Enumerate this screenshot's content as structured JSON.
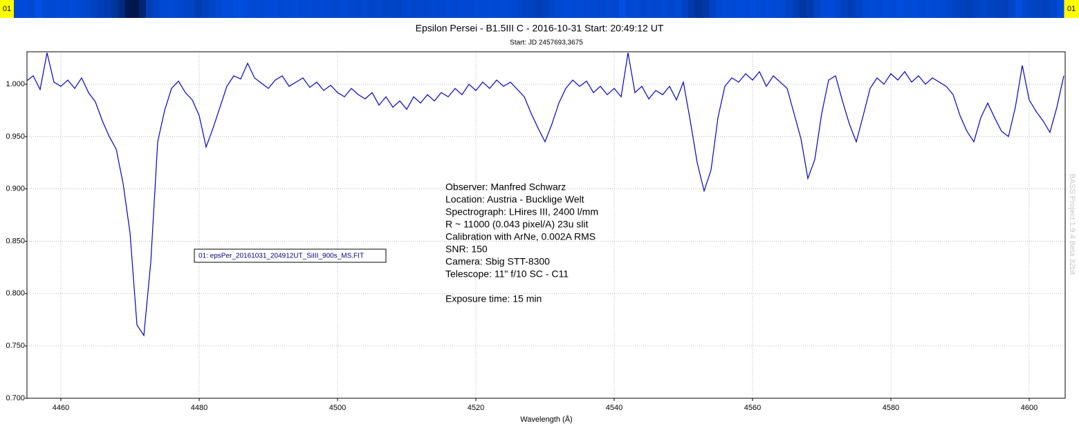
{
  "chart_data": {
    "type": "line",
    "title": "Epsilon Persei - B1.5III C - 2016-10-31 Start: 20:49:12 UT",
    "subtitle": "Start: JD 2457693,3675",
    "xlabel": "Wavelength (Å)",
    "strip_label": "01",
    "watermark": "BASS Project 1.9.4 Beta 32bit",
    "annotation": [
      "Observer: Manfred Schwarz",
      "Location: Austria - Bucklige Welt",
      "Spectrograph: LHires III, 2400 l/mm",
      "R ~ 11000 (0.043 pixel/A) 23u slit",
      "Calibration with ArNe, 0.002A RMS",
      "SNR: 150",
      "Camera: Sbig STT-8300",
      "Telescope: 11\" f/10 SC - C11",
      "Exposure time: 15 min"
    ],
    "xlim": [
      4455.1,
      4605.2
    ],
    "ylim": [
      0.7,
      1.031
    ],
    "xticks": [
      4460,
      4480,
      4500,
      4520,
      4540,
      4560,
      4580,
      4600
    ],
    "yticks": [
      {
        "value": 0.7,
        "label": "0.700"
      },
      {
        "value": 0.75,
        "label": "0.750"
      },
      {
        "value": 0.8,
        "label": "0.800"
      },
      {
        "value": 0.85,
        "label": "0.850"
      },
      {
        "value": 0.9,
        "label": "0.900"
      },
      {
        "value": 0.95,
        "label": "0.950"
      },
      {
        "value": 1.0,
        "label": "1.000"
      }
    ],
    "grid": true,
    "x": [
      4455,
      4456,
      4457,
      4458,
      4459,
      4460,
      4461,
      4462,
      4463,
      4464,
      4465,
      4466,
      4467,
      4468,
      4469,
      4470,
      4471,
      4472,
      4473,
      4474,
      4475,
      4476,
      4477,
      4478,
      4479,
      4480,
      4481,
      4482,
      4483,
      4484,
      4485,
      4486,
      4487,
      4488,
      4489,
      4490,
      4491,
      4492,
      4493,
      4494,
      4495,
      4496,
      4497,
      4498,
      4499,
      4500,
      4501,
      4502,
      4503,
      4504,
      4505,
      4506,
      4507,
      4508,
      4509,
      4510,
      4511,
      4512,
      4513,
      4514,
      4515,
      4516,
      4517,
      4518,
      4519,
      4520,
      4521,
      4522,
      4523,
      4524,
      4525,
      4526,
      4527,
      4528,
      4529,
      4530,
      4531,
      4532,
      4533,
      4534,
      4535,
      4536,
      4537,
      4538,
      4539,
      4540,
      4541,
      4542,
      4543,
      4544,
      4545,
      4546,
      4547,
      4548,
      4549,
      4550,
      4551,
      4552,
      4553,
      4554,
      4555,
      4556,
      4557,
      4558,
      4559,
      4560,
      4561,
      4562,
      4563,
      4564,
      4565,
      4566,
      4567,
      4568,
      4569,
      4570,
      4571,
      4572,
      4573,
      4574,
      4575,
      4576,
      4577,
      4578,
      4579,
      4580,
      4581,
      4582,
      4583,
      4584,
      4585,
      4586,
      4587,
      4588,
      4589,
      4590,
      4591,
      4592,
      4593,
      4594,
      4595,
      4596,
      4597,
      4598,
      4599,
      4600,
      4601,
      4602,
      4603,
      4604,
      4605
    ],
    "series": [
      {
        "name": "01: epsPer_20161031_204912UT_SiIII_900s_MS.FIT",
        "color": "#0000cc",
        "values": [
          1.003,
          1.008,
          0.995,
          1.03,
          1.002,
          0.998,
          1.004,
          0.996,
          1.006,
          0.992,
          0.983,
          0.965,
          0.95,
          0.938,
          0.905,
          0.858,
          0.77,
          0.76,
          0.83,
          0.945,
          0.975,
          0.996,
          1.003,
          0.992,
          0.985,
          0.97,
          0.94,
          0.958,
          0.978,
          0.998,
          1.008,
          1.005,
          1.02,
          1.006,
          1.001,
          0.996,
          1.004,
          1.008,
          0.998,
          1.002,
          1.006,
          0.997,
          1.002,
          0.994,
          0.999,
          0.992,
          0.988,
          0.996,
          0.99,
          0.986,
          0.992,
          0.98,
          0.988,
          0.978,
          0.984,
          0.976,
          0.988,
          0.982,
          0.99,
          0.984,
          0.992,
          0.988,
          0.996,
          0.99,
          1.0,
          0.994,
          1.002,
          0.996,
          1.004,
          0.998,
          1.002,
          0.995,
          0.988,
          0.972,
          0.958,
          0.945,
          0.962,
          0.982,
          0.996,
          1.004,
          0.998,
          1.003,
          0.992,
          0.998,
          0.99,
          0.996,
          0.988,
          1.03,
          0.992,
          0.998,
          0.986,
          0.994,
          0.99,
          0.998,
          0.985,
          1.002,
          0.965,
          0.925,
          0.898,
          0.918,
          0.968,
          0.998,
          1.006,
          1.002,
          1.01,
          1.004,
          1.012,
          0.998,
          1.008,
          1.002,
          0.996,
          0.972,
          0.948,
          0.91,
          0.928,
          0.972,
          1.004,
          1.008,
          0.984,
          0.962,
          0.945,
          0.97,
          0.996,
          1.006,
          1.0,
          1.01,
          1.004,
          1.012,
          1.002,
          1.008,
          1.0,
          1.006,
          1.002,
          0.998,
          0.99,
          0.97,
          0.955,
          0.945,
          0.968,
          0.982,
          0.968,
          0.955,
          0.95,
          0.978,
          1.018,
          0.985,
          0.974,
          0.965,
          0.954,
          0.978,
          1.008
        ]
      }
    ]
  }
}
